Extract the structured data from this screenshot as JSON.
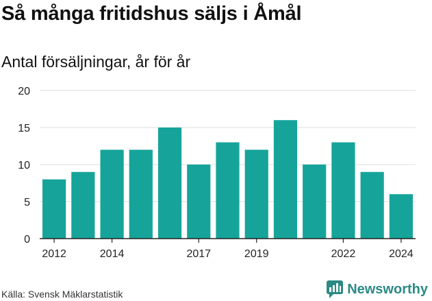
{
  "title": "Så många fritidshus säljs i Åmål",
  "subtitle": "Antal försäljningar, år för år",
  "source": "Källa: Svensk Mäklarstatistik",
  "brand": {
    "name": "Newsworthy",
    "icon": "newsworthy-logo-icon",
    "color": "#2b8a84"
  },
  "chart_data": {
    "type": "bar",
    "categories": [
      "2012",
      "2013",
      "2014",
      "2015",
      "2016",
      "2017",
      "2018",
      "2019",
      "2020",
      "2021",
      "2022",
      "2023",
      "2024"
    ],
    "values": [
      8,
      9,
      12,
      12,
      15,
      10,
      13,
      12,
      16,
      10,
      13,
      9,
      6
    ],
    "x_tick_labels": [
      "2012",
      "2014",
      "2017",
      "2019",
      "2022",
      "2024"
    ],
    "y_ticks": [
      0,
      5,
      10,
      15,
      20
    ],
    "ylim": [
      0,
      20
    ],
    "grid": true,
    "bar_color": "#16a49a",
    "title": "Så många fritidshus säljs i Åmål",
    "xlabel": "",
    "ylabel": ""
  }
}
